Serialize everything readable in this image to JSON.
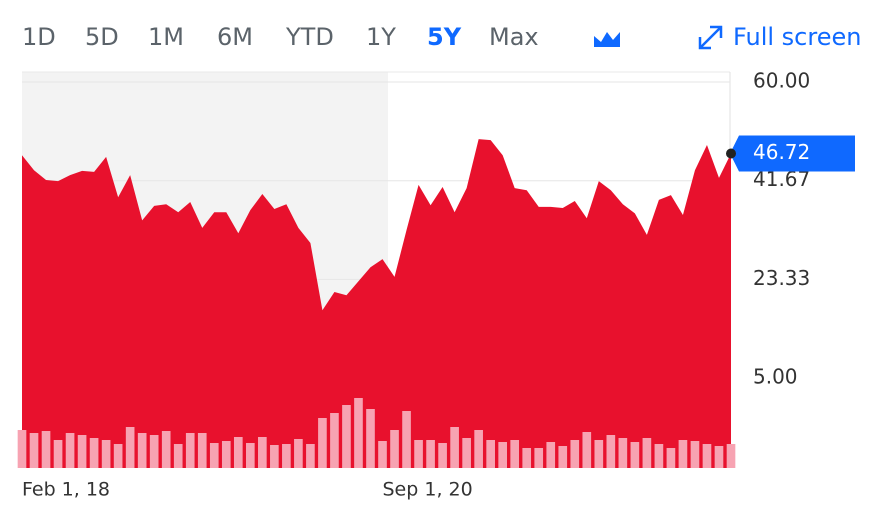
{
  "ranges": [
    "1D",
    "5D",
    "1M",
    "6M",
    "YTD",
    "1Y",
    "5Y",
    "Max"
  ],
  "active_range": "5Y",
  "fullscreen": "Full screen",
  "chart_data": {
    "type": "area",
    "categories": [
      "Feb 1, 18",
      null,
      null,
      null,
      null,
      null,
      null,
      null,
      null,
      null,
      null,
      null,
      null,
      null,
      null,
      null,
      null,
      null,
      null,
      null,
      null,
      null,
      null,
      null,
      null,
      null,
      null,
      null,
      null,
      null,
      "Sep 1, 20",
      null,
      null,
      null,
      null,
      null,
      null,
      null,
      null,
      null,
      null,
      null,
      null,
      null,
      null,
      null,
      null,
      null,
      null,
      null,
      null,
      null,
      null,
      null,
      null,
      null,
      null,
      null,
      null,
      null
    ],
    "series": [
      {
        "color": "#e8112d",
        "values": [
          46.4,
          43.6,
          41.8,
          41.6,
          42.7,
          43.5,
          43.3,
          46.1,
          38.6,
          42.7,
          34.3,
          37.0,
          37.3,
          35.8,
          37.7,
          32.9,
          35.8,
          35.8,
          31.9,
          36.2,
          39.2,
          36.4,
          37.3,
          32.9,
          30.1,
          17.6,
          21.0,
          20.4,
          23.0,
          25.6,
          27.1,
          23.8,
          32.5,
          40.9,
          37.1,
          40.5,
          35.8,
          40.3,
          49.4,
          49.2,
          46.4,
          40.3,
          39.9,
          36.8,
          36.8,
          36.6,
          37.9,
          34.7,
          41.6,
          39.9,
          37.3,
          35.6,
          31.6,
          38.1,
          39.0,
          35.3,
          43.6,
          48.3,
          42.2,
          46.72
        ]
      },
      {
        "color": "#f7a3b2",
        "values": [
          38,
          35,
          37,
          28,
          35,
          33,
          30,
          28,
          24,
          41,
          35,
          33,
          37,
          24,
          35,
          35,
          25,
          27,
          31,
          25,
          31,
          23,
          24,
          29,
          24,
          50,
          55,
          63,
          70,
          59,
          27,
          38,
          57,
          28,
          28,
          25,
          41,
          30,
          38,
          28,
          26,
          28,
          20,
          20,
          26,
          22,
          28,
          36,
          28,
          33,
          30,
          26,
          30,
          24,
          20,
          28,
          27,
          24,
          22,
          24
        ]
      }
    ],
    "ylim": [
      -11.7,
      61.86
    ],
    "yticks": [
      {
        "value": 60,
        "label": "60.00"
      },
      {
        "value": 41.67,
        "label": "41.67"
      },
      {
        "value": 23.33,
        "label": "23.33"
      },
      {
        "value": 5,
        "label": "5.00"
      }
    ],
    "grid": true
  }
}
